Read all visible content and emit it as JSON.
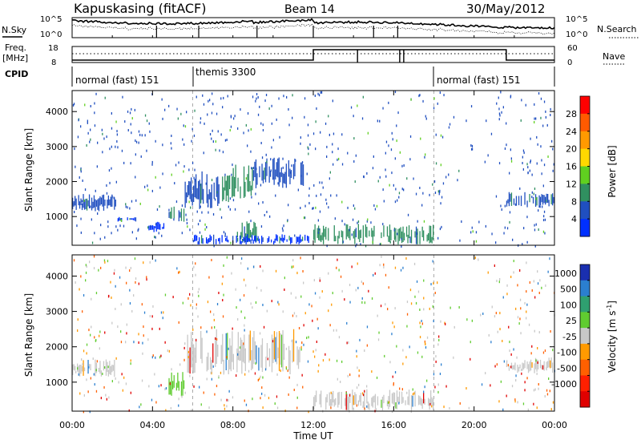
{
  "header": {
    "station": "Kapuskasing (fitACF)",
    "beam": "Beam 14",
    "date": "30/May/2012"
  },
  "noise_panel": {
    "left_label": "N.Sky",
    "left_ticks": [
      "10^5",
      "10^0"
    ],
    "right_label": "N.Search",
    "right_ticks": [
      "10^5",
      "10^0"
    ]
  },
  "freq_panel": {
    "left_label_line1": "Freq.",
    "left_label_line2": "[MHz]",
    "left_ticks": [
      "18",
      "8"
    ],
    "right_label": "Nave",
    "right_ticks": [
      "60",
      "0"
    ]
  },
  "cpid": {
    "label": "CPID",
    "segments": [
      {
        "label": "normal (fast) 151",
        "start_h": 0,
        "end_h": 6
      },
      {
        "label": "themis 3300",
        "start_h": 6,
        "end_h": 18
      },
      {
        "label": "normal (fast) 151",
        "start_h": 18,
        "end_h": 24
      }
    ]
  },
  "x_axis": {
    "label": "Time UT",
    "ticks": [
      "00:00",
      "04:00",
      "08:00",
      "12:00",
      "16:00",
      "20:00",
      "00:00"
    ]
  },
  "power_colorbar": {
    "label": "Power [dB]",
    "ticks": [
      "28",
      "24",
      "20",
      "16",
      "12",
      "8",
      "4"
    ],
    "colors": [
      "#ff0000",
      "#ff5a00",
      "#ff9a00",
      "#ffd800",
      "#60d020",
      "#309060",
      "#204fc0",
      "#0030ff"
    ]
  },
  "velocity_colorbar": {
    "label": "Velocity [m s",
    "label_sup": "-1",
    "label_end": "]",
    "ticks": [
      "1000",
      "500",
      "100",
      "25",
      "-25",
      "-100",
      "-500",
      "-1000"
    ],
    "colors": [
      "#1a2fb0",
      "#2b7fd0",
      "#2fa070",
      "#60cc30",
      "#c8c8c8",
      "#ff9a00",
      "#ff6000",
      "#ff2000",
      "#e00000"
    ]
  },
  "chart_data": [
    {
      "type": "heatmap",
      "title": "Power",
      "ylabel": "Slant Range [km]",
      "xlabel": "Time UT",
      "xlim": [
        0,
        24
      ],
      "ylim": [
        180,
        4600
      ],
      "yticks": [
        1000,
        2000,
        3000,
        4000
      ],
      "colorbar": "Power [dB]",
      "series": [
        {
          "t0": 0.0,
          "t1": 2.2,
          "r0": 1150,
          "r1": 1650,
          "level": "8"
        },
        {
          "t0": 2.2,
          "t1": 3.2,
          "r0": 850,
          "r1": 1000,
          "level": "4"
        },
        {
          "t0": 3.8,
          "t1": 4.6,
          "r0": 550,
          "r1": 850,
          "level": "4"
        },
        {
          "t0": 4.8,
          "t1": 5.6,
          "r0": 750,
          "r1": 1350,
          "level": "12"
        },
        {
          "t0": 5.6,
          "t1": 7.4,
          "r0": 1200,
          "r1": 2300,
          "level": "8"
        },
        {
          "t0": 7.4,
          "t1": 9.0,
          "r0": 1400,
          "r1": 2500,
          "level": "12"
        },
        {
          "t0": 8.2,
          "t1": 9.2,
          "r0": 250,
          "r1": 900,
          "level": "12"
        },
        {
          "t0": 9.0,
          "t1": 11.6,
          "r0": 1800,
          "r1": 2700,
          "level": "8"
        },
        {
          "t0": 6.0,
          "t1": 11.8,
          "r0": 200,
          "r1": 500,
          "level": "4"
        },
        {
          "t0": 12.0,
          "t1": 18.0,
          "r0": 200,
          "r1": 800,
          "level": "12"
        },
        {
          "t0": 21.6,
          "t1": 24.0,
          "r0": 1250,
          "r1": 1700,
          "level": "8"
        }
      ]
    },
    {
      "type": "heatmap",
      "title": "Velocity",
      "ylabel": "Slant Range [km]",
      "xlabel": "Time UT",
      "xlim": [
        0,
        24
      ],
      "ylim": [
        180,
        4600
      ],
      "yticks": [
        1000,
        2000,
        3000,
        4000
      ],
      "colorbar": "Velocity [m s-1]",
      "series": [
        {
          "t0": 0.0,
          "t1": 2.2,
          "r0": 1150,
          "r1": 1650,
          "level": "25"
        },
        {
          "t0": 4.8,
          "t1": 5.6,
          "r0": 600,
          "r1": 1350,
          "level": "100"
        },
        {
          "t0": 5.6,
          "t1": 11.6,
          "r0": 1200,
          "r1": 2500,
          "level": "25"
        },
        {
          "t0": 12.0,
          "t1": 18.0,
          "r0": 200,
          "r1": 800,
          "level": "25"
        },
        {
          "t0": 21.6,
          "t1": 24.0,
          "r0": 1250,
          "r1": 1700,
          "level": "25"
        }
      ]
    }
  ]
}
